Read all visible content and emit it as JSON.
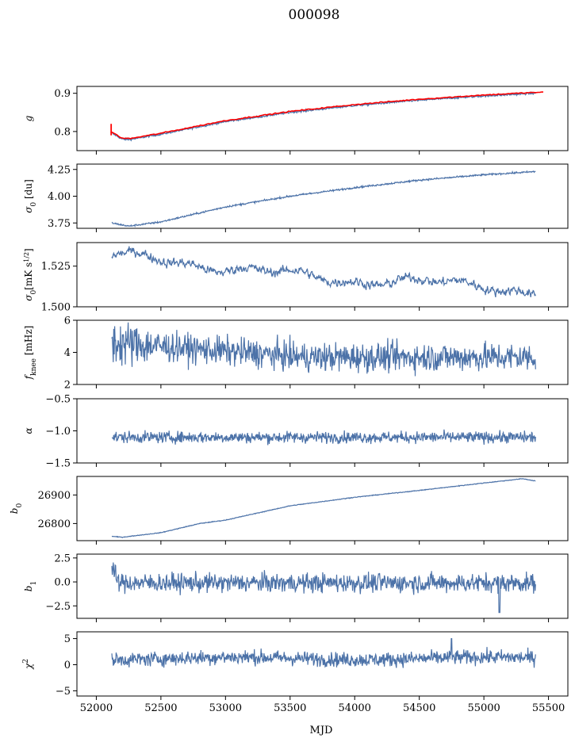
{
  "title": "000098",
  "xlabel": "MJD",
  "xlim": [
    51850,
    55650
  ],
  "xticks": [
    52000,
    52500,
    53000,
    53500,
    54000,
    54500,
    55000,
    55500
  ],
  "colors": {
    "series": "#4c72a8",
    "reference": "#ff0000",
    "axes": "#000000"
  },
  "chart_data": [
    {
      "type": "line",
      "ylabel": "g",
      "ylim": [
        0.75,
        0.918
      ],
      "yticks": [
        0.8,
        0.9
      ],
      "shape": "gain",
      "noise": 0.0012,
      "reference_overlay": true,
      "keypoints": [
        [
          52120,
          0.796
        ],
        [
          52200,
          0.78
        ],
        [
          52260,
          0.779
        ],
        [
          52500,
          0.793
        ],
        [
          53000,
          0.826
        ],
        [
          53500,
          0.85
        ],
        [
          54000,
          0.868
        ],
        [
          54500,
          0.882
        ],
        [
          55000,
          0.893
        ],
        [
          55400,
          0.9
        ]
      ]
    },
    {
      "type": "line",
      "ylabel": "σ0 [du]",
      "ylim": [
        3.7,
        4.3
      ],
      "yticks": [
        3.75,
        4.0,
        4.25
      ],
      "shape": "sigma_du",
      "noise": 0.004,
      "keypoints": [
        [
          52120,
          3.75
        ],
        [
          52250,
          3.72
        ],
        [
          52500,
          3.76
        ],
        [
          53000,
          3.9
        ],
        [
          53500,
          4.0
        ],
        [
          54000,
          4.08
        ],
        [
          54500,
          4.15
        ],
        [
          55000,
          4.2
        ],
        [
          55400,
          4.23
        ]
      ]
    },
    {
      "type": "line",
      "ylabel": "σ0[mK s1/2]",
      "ylim": [
        1.5,
        1.5395
      ],
      "yticks": [
        1.5,
        1.525
      ],
      "shape": "sigma_mk",
      "noise": 0.0022,
      "keypoints": [
        [
          52120,
          1.532
        ],
        [
          53000,
          1.524
        ],
        [
          54000,
          1.516
        ],
        [
          55000,
          1.514
        ],
        [
          55400,
          1.508
        ]
      ]
    },
    {
      "type": "line",
      "ylabel": "fknee [mHz]",
      "ylim": [
        2,
        6
      ],
      "yticks": [
        2,
        4,
        6
      ],
      "shape": "fknee",
      "noise": 0.45,
      "mean": 3.9
    },
    {
      "type": "line",
      "ylabel": "α",
      "ylim": [
        -1.5,
        -0.5
      ],
      "yticks": [
        -1.5,
        -1.0,
        -0.5
      ],
      "shape": "alpha",
      "noise": 0.045,
      "mean": -1.1
    },
    {
      "type": "line",
      "ylabel": "b0",
      "ylim": [
        26740,
        26965
      ],
      "yticks": [
        26800,
        26900
      ],
      "shape": "b0",
      "noise": 0.6,
      "keypoints": [
        [
          52120,
          26755
        ],
        [
          52200,
          26752
        ],
        [
          52500,
          26768
        ],
        [
          52800,
          26800
        ],
        [
          53000,
          26812
        ],
        [
          53500,
          26862
        ],
        [
          54000,
          26892
        ],
        [
          54500,
          26916
        ],
        [
          55000,
          26942
        ],
        [
          55300,
          26957
        ],
        [
          55400,
          26949
        ]
      ]
    },
    {
      "type": "line",
      "ylabel": "b1",
      "ylim": [
        -3.8,
        2.9
      ],
      "yticks": [
        -2.5,
        0.0,
        2.5
      ],
      "shape": "b1",
      "noise": 0.5,
      "mean": -0.1
    },
    {
      "type": "line",
      "ylabel": "χ2",
      "ylim": [
        -6.0,
        6.3
      ],
      "yticks": [
        -5,
        0,
        5
      ],
      "shape": "chi2",
      "noise": 0.7,
      "mean": 1.3
    }
  ]
}
